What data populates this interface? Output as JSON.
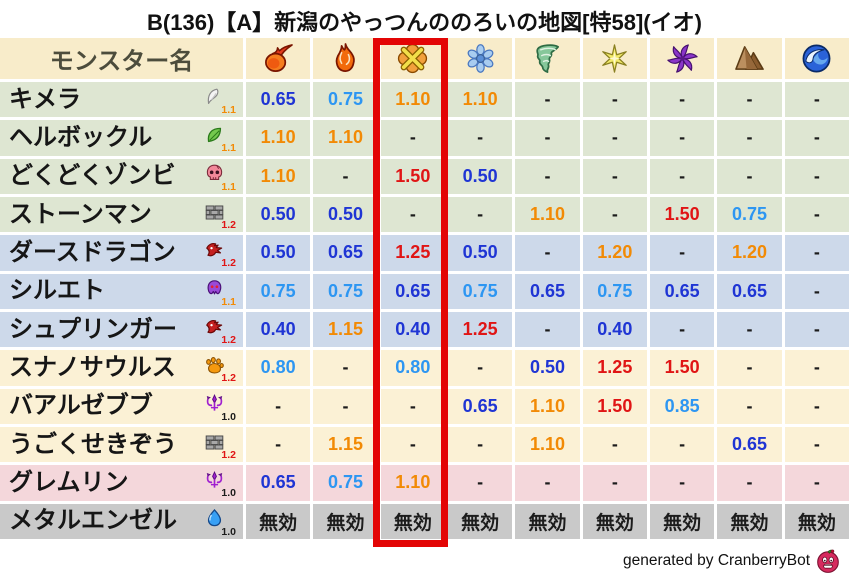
{
  "title": "B(136)【A】新潟のやっつんののろいの地図[特58](イオ)",
  "header": {
    "monster_col": "モンスター名",
    "element_icons": [
      "fireball-icon",
      "flame-icon",
      "explosion-icon",
      "snowflake-icon",
      "tornado-icon",
      "spark-icon",
      "pinwheel-icon",
      "mountain-icon",
      "wave-icon"
    ]
  },
  "highlight": {
    "element_index": 2,
    "element_icon": "explosion-icon",
    "color": "#e30505"
  },
  "colors": {
    "header_bg": "#f8ecca",
    "row_green": "#dee6d2",
    "row_blue": "#cdd9ea",
    "row_cream": "#fbf1d5",
    "row_pink": "#f4d7db",
    "row_gray": "#c9c9c9",
    "value_blue": "#1f35d4",
    "value_lightblue": "#2d96f2",
    "value_orange": "#f28a05",
    "value_red": "#e01515",
    "value_black": "#1c1c1c"
  },
  "footer": {
    "credit": "generated by CranberryBot",
    "icon": "cranberry-bot-icon"
  },
  "chart_data": {
    "type": "table",
    "title": "B(136)【A】新潟のやっつんののろいの地図[特58](イオ)",
    "columns": [
      "モンスター名",
      "fireball",
      "flame",
      "explosion",
      "snowflake",
      "tornado",
      "spark",
      "pinwheel",
      "mountain",
      "wave"
    ],
    "highlighted_column": "explosion",
    "rows": [
      {
        "name": "キメラ",
        "family_icon": "wing-icon",
        "badge": "1.1",
        "badge_color": "orange",
        "bg": "green",
        "values": [
          {
            "v": "0.65",
            "c": "blue"
          },
          {
            "v": "0.75",
            "c": "lightblue"
          },
          {
            "v": "1.10",
            "c": "orange"
          },
          {
            "v": "1.10",
            "c": "orange"
          },
          {
            "v": "-",
            "c": "black"
          },
          {
            "v": "-",
            "c": "black"
          },
          {
            "v": "-",
            "c": "black"
          },
          {
            "v": "-",
            "c": "black"
          },
          {
            "v": "-",
            "c": "black"
          }
        ]
      },
      {
        "name": "ヘルボックル",
        "family_icon": "leaf-icon",
        "badge": "1.1",
        "badge_color": "orange",
        "bg": "green",
        "values": [
          {
            "v": "1.10",
            "c": "orange"
          },
          {
            "v": "1.10",
            "c": "orange"
          },
          {
            "v": "-",
            "c": "black"
          },
          {
            "v": "-",
            "c": "black"
          },
          {
            "v": "-",
            "c": "black"
          },
          {
            "v": "-",
            "c": "black"
          },
          {
            "v": "-",
            "c": "black"
          },
          {
            "v": "-",
            "c": "black"
          },
          {
            "v": "-",
            "c": "black"
          }
        ]
      },
      {
        "name": "どくどくゾンビ",
        "family_icon": "skull-icon",
        "badge": "1.1",
        "badge_color": "orange",
        "bg": "green",
        "values": [
          {
            "v": "1.10",
            "c": "orange"
          },
          {
            "v": "-",
            "c": "black"
          },
          {
            "v": "1.50",
            "c": "red"
          },
          {
            "v": "0.50",
            "c": "blue"
          },
          {
            "v": "-",
            "c": "black"
          },
          {
            "v": "-",
            "c": "black"
          },
          {
            "v": "-",
            "c": "black"
          },
          {
            "v": "-",
            "c": "black"
          },
          {
            "v": "-",
            "c": "black"
          }
        ]
      },
      {
        "name": "ストーンマン",
        "family_icon": "brick-icon",
        "badge": "1.2",
        "badge_color": "red",
        "bg": "green",
        "values": [
          {
            "v": "0.50",
            "c": "blue"
          },
          {
            "v": "0.50",
            "c": "blue"
          },
          {
            "v": "-",
            "c": "black"
          },
          {
            "v": "-",
            "c": "black"
          },
          {
            "v": "1.10",
            "c": "orange"
          },
          {
            "v": "-",
            "c": "black"
          },
          {
            "v": "1.50",
            "c": "red"
          },
          {
            "v": "0.75",
            "c": "lightblue"
          },
          {
            "v": "-",
            "c": "black"
          }
        ]
      },
      {
        "name": "ダースドラゴン",
        "family_icon": "dragon-icon",
        "badge": "1.2",
        "badge_color": "red",
        "bg": "blue",
        "values": [
          {
            "v": "0.50",
            "c": "blue"
          },
          {
            "v": "0.65",
            "c": "blue"
          },
          {
            "v": "1.25",
            "c": "red"
          },
          {
            "v": "0.50",
            "c": "blue"
          },
          {
            "v": "-",
            "c": "black"
          },
          {
            "v": "1.20",
            "c": "orange"
          },
          {
            "v": "-",
            "c": "black"
          },
          {
            "v": "1.20",
            "c": "orange"
          },
          {
            "v": "-",
            "c": "black"
          }
        ]
      },
      {
        "name": "シルエト",
        "family_icon": "ghost-icon",
        "badge": "1.1",
        "badge_color": "orange",
        "bg": "blue",
        "values": [
          {
            "v": "0.75",
            "c": "lightblue"
          },
          {
            "v": "0.75",
            "c": "lightblue"
          },
          {
            "v": "0.65",
            "c": "blue"
          },
          {
            "v": "0.75",
            "c": "lightblue"
          },
          {
            "v": "0.65",
            "c": "blue"
          },
          {
            "v": "0.75",
            "c": "lightblue"
          },
          {
            "v": "0.65",
            "c": "blue"
          },
          {
            "v": "0.65",
            "c": "blue"
          },
          {
            "v": "-",
            "c": "black"
          }
        ]
      },
      {
        "name": "シュプリンガー",
        "family_icon": "dragon-icon",
        "badge": "1.2",
        "badge_color": "red",
        "bg": "blue",
        "values": [
          {
            "v": "0.40",
            "c": "blue"
          },
          {
            "v": "1.15",
            "c": "orange"
          },
          {
            "v": "0.40",
            "c": "blue"
          },
          {
            "v": "1.25",
            "c": "red"
          },
          {
            "v": "-",
            "c": "black"
          },
          {
            "v": "0.40",
            "c": "blue"
          },
          {
            "v": "-",
            "c": "black"
          },
          {
            "v": "-",
            "c": "black"
          },
          {
            "v": "-",
            "c": "black"
          }
        ]
      },
      {
        "name": "スナノサウルス",
        "family_icon": "paw-icon",
        "badge": "1.2",
        "badge_color": "red",
        "bg": "cream",
        "values": [
          {
            "v": "0.80",
            "c": "lightblue"
          },
          {
            "v": "-",
            "c": "black"
          },
          {
            "v": "0.80",
            "c": "lightblue"
          },
          {
            "v": "-",
            "c": "black"
          },
          {
            "v": "0.50",
            "c": "blue"
          },
          {
            "v": "1.25",
            "c": "red"
          },
          {
            "v": "1.50",
            "c": "red"
          },
          {
            "v": "-",
            "c": "black"
          },
          {
            "v": "-",
            "c": "black"
          }
        ]
      },
      {
        "name": "バアルゼブブ",
        "family_icon": "demon-icon",
        "badge": "1.0",
        "badge_color": "black",
        "bg": "cream",
        "values": [
          {
            "v": "-",
            "c": "black"
          },
          {
            "v": "-",
            "c": "black"
          },
          {
            "v": "-",
            "c": "black"
          },
          {
            "v": "0.65",
            "c": "blue"
          },
          {
            "v": "1.10",
            "c": "orange"
          },
          {
            "v": "1.50",
            "c": "red"
          },
          {
            "v": "0.85",
            "c": "lightblue"
          },
          {
            "v": "-",
            "c": "black"
          },
          {
            "v": "-",
            "c": "black"
          }
        ]
      },
      {
        "name": "うごくせきぞう",
        "family_icon": "brick-icon",
        "badge": "1.2",
        "badge_color": "red",
        "bg": "cream",
        "values": [
          {
            "v": "-",
            "c": "black"
          },
          {
            "v": "1.15",
            "c": "orange"
          },
          {
            "v": "-",
            "c": "black"
          },
          {
            "v": "-",
            "c": "black"
          },
          {
            "v": "1.10",
            "c": "orange"
          },
          {
            "v": "-",
            "c": "black"
          },
          {
            "v": "-",
            "c": "black"
          },
          {
            "v": "0.65",
            "c": "blue"
          },
          {
            "v": "-",
            "c": "black"
          }
        ]
      },
      {
        "name": "グレムリン",
        "family_icon": "demon-icon",
        "badge": "1.0",
        "badge_color": "black",
        "bg": "pink",
        "values": [
          {
            "v": "0.65",
            "c": "blue"
          },
          {
            "v": "0.75",
            "c": "lightblue"
          },
          {
            "v": "1.10",
            "c": "orange"
          },
          {
            "v": "-",
            "c": "black"
          },
          {
            "v": "-",
            "c": "black"
          },
          {
            "v": "-",
            "c": "black"
          },
          {
            "v": "-",
            "c": "black"
          },
          {
            "v": "-",
            "c": "black"
          },
          {
            "v": "-",
            "c": "black"
          }
        ]
      },
      {
        "name": "メタルエンゼル",
        "family_icon": "slime-icon",
        "badge": "1.0",
        "badge_color": "black",
        "bg": "gray",
        "values": [
          {
            "v": "無効",
            "c": "black"
          },
          {
            "v": "無効",
            "c": "black"
          },
          {
            "v": "無効",
            "c": "black"
          },
          {
            "v": "無効",
            "c": "black"
          },
          {
            "v": "無効",
            "c": "black"
          },
          {
            "v": "無効",
            "c": "black"
          },
          {
            "v": "無効",
            "c": "black"
          },
          {
            "v": "無効",
            "c": "black"
          },
          {
            "v": "無効",
            "c": "black"
          }
        ]
      }
    ]
  }
}
